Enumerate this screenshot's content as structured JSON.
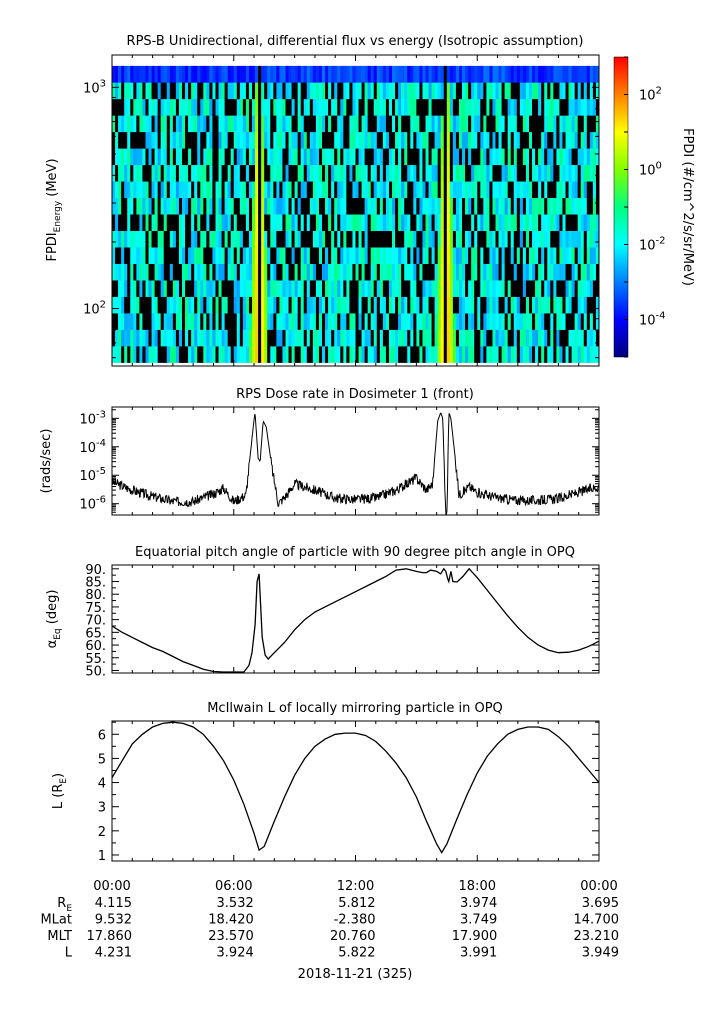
{
  "chart_data": [
    {
      "type": "heatmap",
      "title": "RPS-B  Unidirectional, differential flux vs energy (Isotropic assumption)",
      "ylabel_main": "FPDI",
      "ylabel_sub": "Energy",
      "ylabel_unit": " (MeV)",
      "yscale": "log",
      "ylim": [
        55,
        1400
      ],
      "yticks": [
        {
          "value": 100,
          "base": "10",
          "exp": "2"
        },
        {
          "value": 1000,
          "base": "10",
          "exp": "3"
        }
      ],
      "x_hours": [
        0,
        24
      ],
      "colorbar_label": "FPDI (#/cm^2/s/sr/MeV)",
      "colorbar_scale": "log",
      "colorbar_range": [
        1e-05,
        1000.0
      ],
      "colorbar_ticks": [
        {
          "value": 0.0001,
          "base": "10",
          "exp": "-4"
        },
        {
          "value": 0.01,
          "base": "10",
          "exp": "-2"
        },
        {
          "value": 1,
          "base": "10",
          "exp": "0"
        },
        {
          "value": 100,
          "base": "10",
          "exp": "2"
        }
      ],
      "colors": [
        "#00007f",
        "#0000ff",
        "#0080ff",
        "#00ffff",
        "#00ff80",
        "#80ff00",
        "#ffff00",
        "#ff8000",
        "#ff0000"
      ],
      "belt_crossings": [
        {
          "center_hours": 7.25,
          "gap_hours": 0.1
        },
        {
          "center_hours": 16.45,
          "gap_hours": 0.1
        }
      ]
    },
    {
      "type": "line",
      "title": "RPS  Dose rate in Dosimeter 1 (front)",
      "ylabel": "(rads/sec)",
      "yscale": "log",
      "ylim": [
        4e-07,
        0.0025
      ],
      "yticks": [
        {
          "value": 1e-06,
          "base": "10",
          "exp": "-6"
        },
        {
          "value": 1e-05,
          "base": "10",
          "exp": "-5"
        },
        {
          "value": 0.0001,
          "base": "10",
          "exp": "-4"
        },
        {
          "value": 0.001,
          "base": "10",
          "exp": "-3"
        }
      ],
      "x": [
        0,
        1,
        2,
        3,
        4,
        5,
        5.5,
        6,
        6.6,
        7.0,
        7.05,
        7.2,
        7.3,
        7.45,
        7.6,
        7.9,
        8.2,
        8.6,
        9,
        10,
        11,
        12,
        13,
        14,
        15,
        15.5,
        15.8,
        16.05,
        16.2,
        16.3,
        16.45,
        16.5,
        16.6,
        16.7,
        16.9,
        17.1,
        17.4,
        17.6,
        18,
        19,
        20,
        21,
        22,
        23,
        24
      ],
      "y": [
        6e-06,
        3e-06,
        1.8e-06,
        1.2e-06,
        1.2e-06,
        2.2e-06,
        3.5e-06,
        1.2e-06,
        2e-06,
        0.0009,
        0.0016,
        4e-05,
        3e-05,
        0.0008,
        0.0005,
        1.5e-05,
        1e-06,
        2e-06,
        5e-06,
        3e-06,
        1.6e-06,
        1.4e-06,
        1.6e-06,
        3e-06,
        8e-06,
        3e-06,
        5e-06,
        0.0008,
        0.0016,
        0.001,
        3e-07,
        3e-07,
        0.0016,
        0.001,
        5e-05,
        2e-06,
        3e-06,
        4e-06,
        2.5e-06,
        1.6e-06,
        1.3e-06,
        1.3e-06,
        1.5e-06,
        2.5e-06,
        4e-06
      ]
    },
    {
      "type": "line",
      "title": "Equatorial pitch angle of particle with 90 degree pitch angle in OPQ",
      "ylabel_main": "α",
      "ylabel_sub": "Eq",
      "ylabel_unit": " (deg)",
      "ylim": [
        49,
        91.5
      ],
      "yticks": [
        50,
        55,
        60,
        65,
        70,
        75,
        80,
        85,
        90
      ],
      "x": [
        0,
        0.5,
        1,
        1.5,
        2,
        2.5,
        3,
        3.5,
        4,
        4.5,
        5,
        5.5,
        6,
        6.5,
        6.75,
        6.9,
        7.05,
        7.15,
        7.25,
        7.3,
        7.4,
        7.55,
        7.7,
        8,
        8.5,
        9,
        9.5,
        10,
        11,
        12,
        13,
        13.5,
        14,
        14.5,
        15,
        15.3,
        15.5,
        15.7,
        16,
        16.2,
        16.35,
        16.45,
        16.55,
        16.6,
        16.7,
        16.8,
        17,
        17.3,
        17.6,
        18,
        18.5,
        19,
        19.5,
        20,
        20.5,
        21,
        21.5,
        22,
        22.5,
        23,
        23.5,
        24
      ],
      "y": [
        67.5,
        65,
        63,
        61,
        59,
        57.5,
        55.5,
        53.5,
        52,
        50.5,
        49.6,
        49.2,
        49.1,
        49.2,
        52,
        57,
        68,
        85,
        88,
        80,
        63,
        56,
        54.5,
        57,
        61,
        66,
        70,
        73,
        77,
        81,
        85,
        87,
        89.5,
        90,
        89,
        88.5,
        88.5,
        89.5,
        89,
        88,
        90,
        89,
        86,
        85,
        89,
        85,
        84.8,
        87,
        90,
        86.5,
        81.5,
        76.5,
        71.5,
        67,
        63,
        60,
        58,
        57,
        57.2,
        58,
        59.5,
        61.5
      ]
    },
    {
      "type": "line",
      "title": "McIlwain L of locally mirroring particle in OPQ",
      "ylabel_main": "L (R",
      "ylabel_sub": "E",
      "ylabel_unit": ")",
      "ylim": [
        0.75,
        6.55
      ],
      "yticks": [
        1,
        2,
        3,
        4,
        5,
        6
      ],
      "x": [
        0,
        0.5,
        1,
        1.5,
        2,
        2.5,
        3,
        3.5,
        4,
        4.5,
        5,
        5.5,
        6,
        6.5,
        7,
        7.25,
        7.5,
        8,
        8.5,
        9,
        9.5,
        10,
        10.5,
        11,
        11.5,
        12,
        12.5,
        13,
        13.5,
        14,
        14.5,
        15,
        15.5,
        16,
        16.25,
        16.5,
        17,
        17.5,
        18,
        18.5,
        19,
        19.5,
        20,
        20.5,
        21,
        21.5,
        22,
        22.5,
        23,
        23.5,
        24
      ],
      "y": [
        4.2,
        4.9,
        5.6,
        6.0,
        6.3,
        6.45,
        6.5,
        6.45,
        6.3,
        6.0,
        5.5,
        4.9,
        4.1,
        3.1,
        1.9,
        1.2,
        1.35,
        2.4,
        3.4,
        4.3,
        5.0,
        5.5,
        5.8,
        6.0,
        6.05,
        6.05,
        5.95,
        5.7,
        5.3,
        4.8,
        4.2,
        3.4,
        2.4,
        1.45,
        1.1,
        1.45,
        2.5,
        3.5,
        4.4,
        5.1,
        5.6,
        6.0,
        6.2,
        6.3,
        6.3,
        6.2,
        5.9,
        5.5,
        5.0,
        4.5,
        4.0
      ]
    }
  ],
  "x_axis": {
    "tick_labels": [
      "00:00",
      "06:00",
      "12:00",
      "18:00",
      "00:00"
    ],
    "rows": [
      {
        "label_main": "R",
        "label_sub": "E",
        "values": [
          "4.115",
          "3.532",
          "5.812",
          "3.974",
          "3.695"
        ]
      },
      {
        "label_main": "MLat",
        "label_sub": "",
        "values": [
          "9.532",
          "18.420",
          "-2.380",
          "3.749",
          "14.700"
        ]
      },
      {
        "label_main": "MLT",
        "label_sub": "",
        "values": [
          "17.860",
          "23.570",
          "20.760",
          "17.900",
          "23.210"
        ]
      },
      {
        "label_main": "L",
        "label_sub": "",
        "values": [
          "4.231",
          "3.924",
          "5.822",
          "3.991",
          "3.949"
        ]
      }
    ],
    "date_label": "2018-11-21 (325)"
  }
}
